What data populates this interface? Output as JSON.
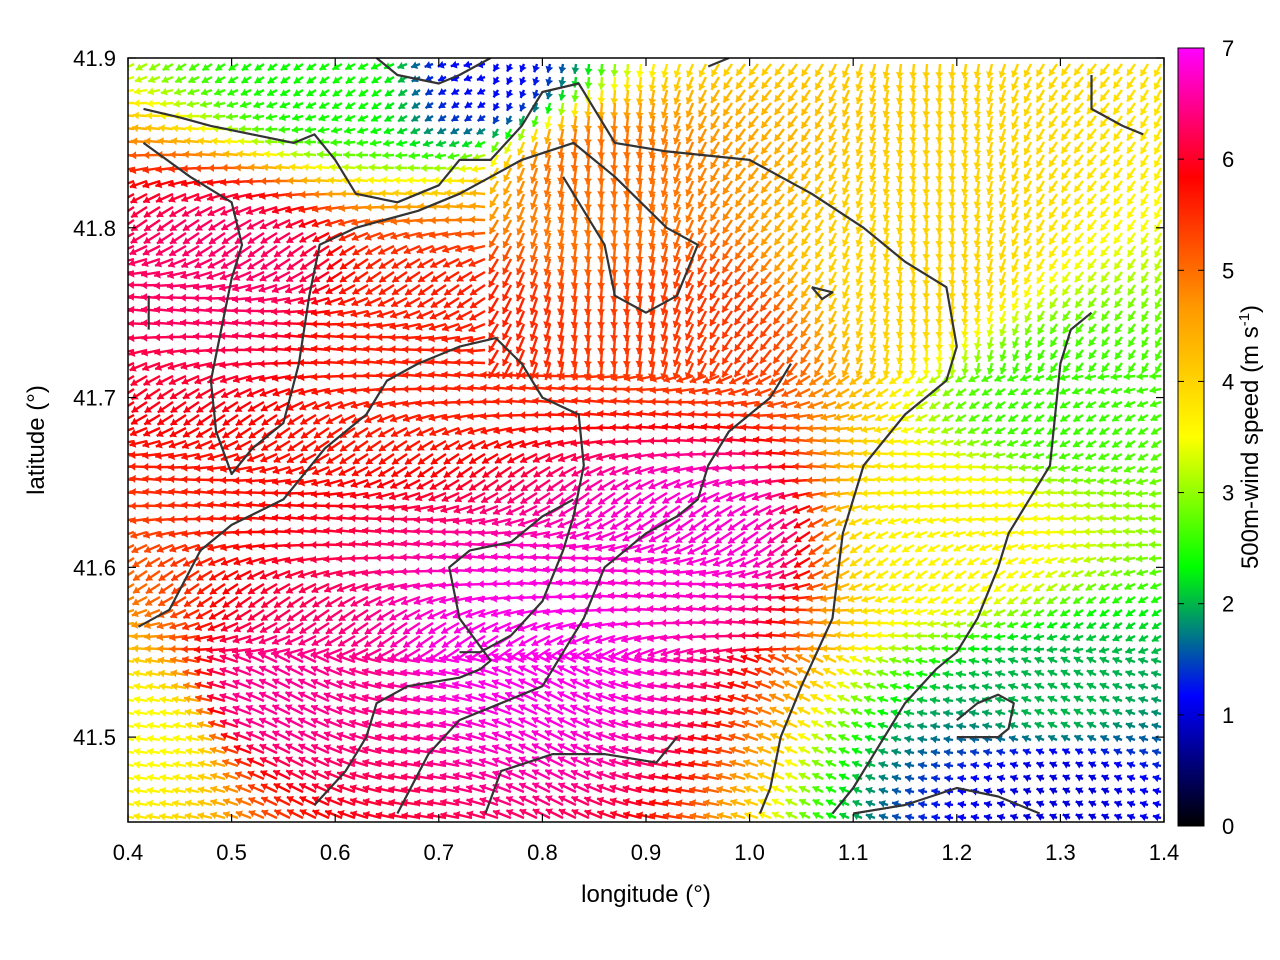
{
  "chart_data": {
    "type": "quiver",
    "xlabel": "longitude (°)",
    "ylabel": "latitude (°)",
    "xlim": [
      0.4,
      1.4
    ],
    "ylim": [
      41.45,
      41.9
    ],
    "x_ticks": [
      "0.4",
      "0.5",
      "0.6",
      "0.7",
      "0.8",
      "0.9",
      "1.0",
      "1.1",
      "1.2",
      "1.3",
      "1.4"
    ],
    "y_ticks": [
      "41.5",
      "41.6",
      "41.7",
      "41.8",
      "41.9"
    ],
    "x_tick_values": [
      0.4,
      0.5,
      0.6,
      0.7,
      0.8,
      0.9,
      1.0,
      1.1,
      1.2,
      1.3,
      1.4
    ],
    "y_tick_values": [
      41.5,
      41.6,
      41.7,
      41.8,
      41.9
    ],
    "colorbar": {
      "label_main": "500m-wind speed (m s",
      "label_sup": "-1",
      "label_close": ")",
      "range": [
        0,
        7
      ],
      "ticks": [
        "0",
        "1",
        "2",
        "3",
        "4",
        "5",
        "6",
        "7"
      ],
      "tick_values": [
        0,
        1,
        2,
        3,
        4,
        5,
        6,
        7
      ],
      "palette": [
        "#000000",
        "#0000ff",
        "#00ff00",
        "#ffff00",
        "#ff9900",
        "#ff0000",
        "#ff00ff"
      ]
    },
    "speed_regions": [
      {
        "lon": 0.8,
        "lat": 41.55,
        "speed": 6.9
      },
      {
        "lon": 0.95,
        "lat": 41.62,
        "speed": 6.8
      },
      {
        "lon": 0.55,
        "lat": 41.52,
        "speed": 6.5
      },
      {
        "lon": 0.5,
        "lat": 41.78,
        "speed": 6.3
      },
      {
        "lon": 0.7,
        "lat": 41.75,
        "speed": 5.6
      },
      {
        "lon": 0.95,
        "lat": 41.74,
        "speed": 5.4
      },
      {
        "lon": 0.85,
        "lat": 41.84,
        "speed": 5.0
      },
      {
        "lon": 1.15,
        "lat": 41.78,
        "speed": 4.0
      },
      {
        "lon": 1.2,
        "lat": 41.62,
        "speed": 3.6
      },
      {
        "lon": 1.3,
        "lat": 41.7,
        "speed": 2.6
      },
      {
        "lon": 1.3,
        "lat": 41.52,
        "speed": 2.0
      },
      {
        "lon": 1.3,
        "lat": 41.47,
        "speed": 1.0
      },
      {
        "lon": 0.6,
        "lat": 41.89,
        "speed": 2.4
      },
      {
        "lon": 0.75,
        "lat": 41.89,
        "speed": 1.2
      },
      {
        "lon": 0.42,
        "lat": 41.5,
        "speed": 3.5
      }
    ],
    "contours": [
      [
        [
          0.415,
          41.87
        ],
        [
          0.45,
          41.865
        ],
        [
          0.48,
          41.86
        ],
        [
          0.52,
          41.855
        ],
        [
          0.56,
          41.85
        ],
        [
          0.58,
          41.855
        ],
        [
          0.6,
          41.84
        ],
        [
          0.62,
          41.82
        ],
        [
          0.66,
          41.815
        ],
        [
          0.7,
          41.825
        ],
        [
          0.72,
          41.84
        ],
        [
          0.75,
          41.84
        ],
        [
          0.78,
          41.86
        ],
        [
          0.8,
          41.88
        ],
        [
          0.835,
          41.885
        ],
        [
          0.85,
          41.87
        ],
        [
          0.87,
          41.85
        ],
        [
          0.92,
          41.845
        ],
        [
          1.0,
          41.84
        ],
        [
          1.06,
          41.82
        ],
        [
          1.11,
          41.8
        ],
        [
          1.15,
          41.78
        ],
        [
          1.19,
          41.765
        ],
        [
          1.2,
          41.73
        ],
        [
          1.19,
          41.71
        ],
        [
          1.15,
          41.69
        ],
        [
          1.11,
          41.66
        ],
        [
          1.09,
          41.62
        ],
        [
          1.08,
          41.57
        ],
        [
          1.05,
          41.53
        ],
        [
          1.03,
          41.5
        ],
        [
          1.02,
          41.47
        ],
        [
          1.01,
          41.455
        ]
      ],
      [
        [
          0.415,
          41.85
        ],
        [
          0.46,
          41.83
        ],
        [
          0.5,
          41.815
        ],
        [
          0.51,
          41.79
        ],
        [
          0.5,
          41.77
        ],
        [
          0.49,
          41.74
        ],
        [
          0.48,
          41.71
        ],
        [
          0.485,
          41.68
        ],
        [
          0.5,
          41.655
        ],
        [
          0.52,
          41.67
        ],
        [
          0.55,
          41.685
        ],
        [
          0.565,
          41.72
        ],
        [
          0.575,
          41.76
        ],
        [
          0.585,
          41.79
        ],
        [
          0.62,
          41.8
        ],
        [
          0.68,
          41.81
        ],
        [
          0.72,
          41.82
        ],
        [
          0.78,
          41.84
        ],
        [
          0.83,
          41.85
        ],
        [
          0.87,
          41.83
        ],
        [
          0.92,
          41.8
        ],
        [
          0.95,
          41.79
        ],
        [
          0.93,
          41.76
        ],
        [
          0.9,
          41.75
        ],
        [
          0.87,
          41.76
        ],
        [
          0.86,
          41.79
        ],
        [
          0.82,
          41.83
        ]
      ],
      [
        [
          0.41,
          41.565
        ],
        [
          0.44,
          41.575
        ],
        [
          0.47,
          41.61
        ],
        [
          0.5,
          41.625
        ],
        [
          0.55,
          41.64
        ],
        [
          0.59,
          41.67
        ],
        [
          0.63,
          41.69
        ],
        [
          0.65,
          41.71
        ],
        [
          0.68,
          41.72
        ],
        [
          0.72,
          41.73
        ],
        [
          0.755,
          41.735
        ],
        [
          0.78,
          41.72
        ],
        [
          0.8,
          41.7
        ],
        [
          0.835,
          41.69
        ],
        [
          0.84,
          41.66
        ],
        [
          0.83,
          41.63
        ],
        [
          0.82,
          41.61
        ],
        [
          0.8,
          41.58
        ],
        [
          0.77,
          41.56
        ],
        [
          0.74,
          41.55
        ],
        [
          0.72,
          41.55
        ]
      ],
      [
        [
          0.58,
          41.46
        ],
        [
          0.61,
          41.48
        ],
        [
          0.63,
          41.5
        ],
        [
          0.64,
          41.52
        ],
        [
          0.67,
          41.53
        ],
        [
          0.72,
          41.535
        ],
        [
          0.74,
          41.54
        ],
        [
          0.75,
          41.545
        ],
        [
          0.72,
          41.57
        ],
        [
          0.71,
          41.6
        ],
        [
          0.73,
          41.61
        ],
        [
          0.77,
          41.615
        ],
        [
          0.8,
          41.63
        ],
        [
          0.83,
          41.64
        ]
      ],
      [
        [
          0.66,
          41.455
        ],
        [
          0.69,
          41.49
        ],
        [
          0.72,
          41.51
        ],
        [
          0.76,
          41.52
        ],
        [
          0.8,
          41.53
        ],
        [
          0.82,
          41.55
        ],
        [
          0.84,
          41.57
        ],
        [
          0.86,
          41.6
        ],
        [
          0.9,
          41.62
        ],
        [
          0.93,
          41.63
        ],
        [
          0.95,
          41.64
        ],
        [
          0.96,
          41.66
        ],
        [
          0.98,
          41.68
        ],
        [
          1.02,
          41.7
        ],
        [
          1.04,
          41.72
        ]
      ],
      [
        [
          0.745,
          41.455
        ],
        [
          0.76,
          41.48
        ],
        [
          0.81,
          41.49
        ],
        [
          0.86,
          41.49
        ],
        [
          0.91,
          41.485
        ],
        [
          0.93,
          41.5
        ]
      ],
      [
        [
          1.33,
          41.75
        ],
        [
          1.31,
          41.74
        ],
        [
          1.3,
          41.72
        ],
        [
          1.295,
          41.69
        ],
        [
          1.29,
          41.66
        ],
        [
          1.27,
          41.64
        ],
        [
          1.25,
          41.62
        ],
        [
          1.24,
          41.6
        ],
        [
          1.22,
          41.57
        ],
        [
          1.2,
          41.55
        ],
        [
          1.18,
          41.54
        ],
        [
          1.15,
          41.52
        ],
        [
          1.12,
          41.49
        ],
        [
          1.1,
          41.47
        ],
        [
          1.08,
          41.455
        ]
      ],
      [
        [
          1.2,
          41.51
        ],
        [
          1.22,
          41.52
        ],
        [
          1.24,
          41.525
        ],
        [
          1.255,
          41.52
        ],
        [
          1.25,
          41.505
        ],
        [
          1.24,
          41.5
        ],
        [
          1.2,
          41.5
        ]
      ],
      [
        [
          1.1,
          41.455
        ],
        [
          1.15,
          41.46
        ],
        [
          1.2,
          41.47
        ],
        [
          1.24,
          41.465
        ],
        [
          1.26,
          41.46
        ],
        [
          1.28,
          41.455
        ]
      ],
      [
        [
          1.33,
          41.89
        ],
        [
          1.33,
          41.87
        ],
        [
          1.36,
          41.86
        ],
        [
          1.38,
          41.855
        ]
      ],
      [
        [
          0.64,
          41.9
        ],
        [
          0.66,
          41.89
        ],
        [
          0.7,
          41.885
        ],
        [
          0.72,
          41.89
        ],
        [
          0.75,
          41.9
        ]
      ],
      [
        [
          0.42,
          41.76
        ],
        [
          0.42,
          41.74
        ]
      ],
      [
        [
          1.06,
          41.765
        ],
        [
          1.08,
          41.762
        ],
        [
          1.07,
          41.758
        ],
        [
          1.06,
          41.765
        ]
      ],
      [
        [
          0.96,
          41.895
        ],
        [
          0.98,
          41.9
        ]
      ]
    ],
    "grid": false,
    "legend": "none"
  }
}
